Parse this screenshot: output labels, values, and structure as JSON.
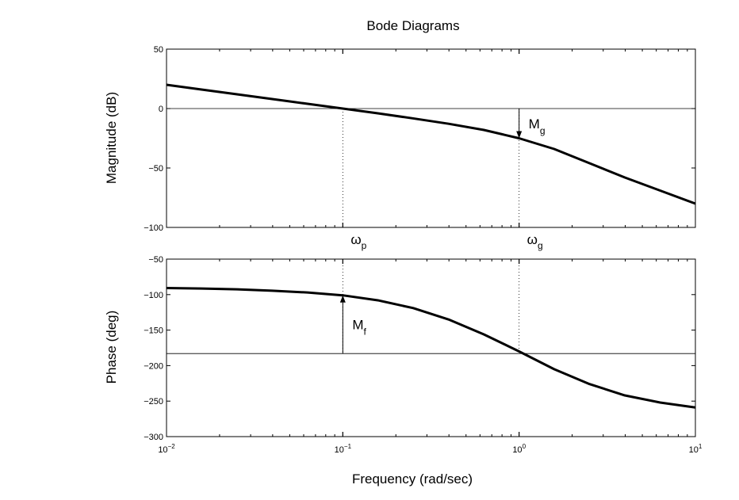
{
  "chart_data": [
    {
      "type": "line",
      "panel": "magnitude",
      "title": "Bode Diagrams",
      "ylabel": "Magnitude (dB)",
      "xscale": "log",
      "xlim": [
        0.01,
        10
      ],
      "ylim": [
        -100,
        50
      ],
      "yticks": [
        50,
        0,
        -50,
        -100
      ],
      "ytick_labels": [
        "50",
        "0",
        "−50",
        "−100"
      ],
      "series": [
        {
          "x": [
            0.01,
            0.0158,
            0.0251,
            0.0398,
            0.0631,
            0.1,
            0.158,
            0.251,
            0.398,
            0.631,
            1.0,
            1.58,
            2.51,
            3.98,
            6.31,
            10
          ],
          "values": [
            20,
            16,
            12,
            8,
            4,
            0,
            -4,
            -8.3,
            -12.8,
            -18,
            -25,
            -34,
            -46,
            -58,
            -69,
            -80
          ]
        }
      ],
      "reference_line": {
        "y": 0
      },
      "annotations": [
        {
          "main": "M",
          "sub": "g",
          "x": 1.0,
          "from": 0,
          "to": -25,
          "arrow": "down"
        }
      ]
    },
    {
      "type": "line",
      "panel": "phase",
      "xlabel": "Frequency (rad/sec)",
      "ylabel": "Phase (deg)",
      "xscale": "log",
      "xlim": [
        0.01,
        10
      ],
      "ylim": [
        -300,
        -50
      ],
      "yticks": [
        -50,
        -100,
        -150,
        -200,
        -250,
        -300
      ],
      "ytick_labels": [
        "−50",
        "−100",
        "−150",
        "−200",
        "−250",
        "−300"
      ],
      "xticks": [
        0.01,
        0.1,
        1,
        10
      ],
      "xtick_labels": [
        {
          "base": "10",
          "exp": "−2"
        },
        {
          "base": "10",
          "exp": "−1"
        },
        {
          "base": "10",
          "exp": "0"
        },
        {
          "base": "10",
          "exp": "1"
        }
      ],
      "series": [
        {
          "x": [
            0.01,
            0.0158,
            0.0251,
            0.0398,
            0.0631,
            0.1,
            0.158,
            0.251,
            0.398,
            0.631,
            1.0,
            1.58,
            2.51,
            3.98,
            6.31,
            10
          ],
          "values": [
            -90.8,
            -91.5,
            -92.5,
            -94.5,
            -97,
            -101,
            -108,
            -119,
            -135,
            -156,
            -180,
            -205,
            -226,
            -242,
            -252,
            -259
          ]
        }
      ],
      "reference_line": {
        "y": -183
      },
      "annotations": [
        {
          "main": "M",
          "sub": "f",
          "x": 0.1,
          "from": -183,
          "to": -101,
          "arrow": "up"
        }
      ]
    }
  ],
  "markers": [
    {
      "main": "ω",
      "sub": "p",
      "x": 0.1
    },
    {
      "main": "ω",
      "sub": "g",
      "x": 1.0
    }
  ]
}
